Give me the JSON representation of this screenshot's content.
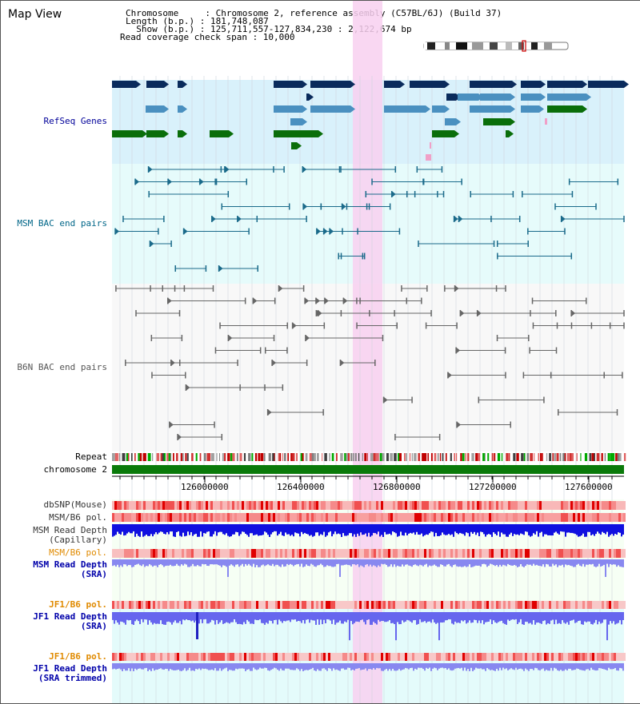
{
  "header": {
    "title": "Map View",
    "chromosome_line": "Chromosome     : Chromosome 2, reference assembly (C57BL/6J) (Build 37)",
    "length_line": "Length (b.p.) : 181,748,087",
    "show_line": "  Show (b.p.) : 125,711,557-127,834,230 : 2,122,674 bp",
    "coverage_line": "Read coverage check span : 10,000"
  },
  "tracks": {
    "refseq": "RefSeq Genes",
    "msm_bac": "MSM BAC end pairs",
    "b6n_bac": "B6N BAC end pairs",
    "repeat": "Repeat",
    "chromosome": "chromosome 2",
    "dbsnp": "dbSNP(Mouse)",
    "msm_b6_pol_1": "MSM/B6 pol.",
    "msm_depth_cap": "MSM Read Depth\n(Capillary)",
    "msm_b6_pol_2": "MSM/B6 pol.",
    "msm_depth_sra": "MSM Read Depth\n(SRA)",
    "jf1_b6_pol_1": "JF1/B6 pol.",
    "jf1_depth_sra": "JF1 Read Depth\n(SRA)",
    "jf1_b6_pol_2": "JF1/B6 pol.",
    "jf1_depth_trim": "JF1 Read Depth\n(SRA trimmed)"
  },
  "ruler": {
    "ticks": [
      "126000000",
      "126400000",
      "126800000",
      "127200000",
      "127600000"
    ]
  },
  "colors": {
    "refseq_bg": "#d9f1fb",
    "refseq_label": "#000099",
    "msm_bac_bg": "#e6fbfb",
    "msm_bac_label": "#006688",
    "b6n_label": "#555555",
    "highlight": "#f8d0f0",
    "gene_dark": "#0a2b5c",
    "gene_mid": "#4a90c0",
    "gene_green": "#0a6e0a",
    "chromosome_bar": "#0a7a0a",
    "orange_label": "#e08a00",
    "blue_label": "#0000aa"
  }
}
